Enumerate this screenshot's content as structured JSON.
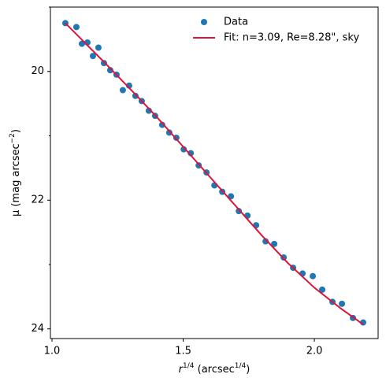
{
  "chart_data": {
    "type": "scatter_fit",
    "xlabel": [
      "r",
      "1/4",
      " (arcsec",
      "1/4",
      ")"
    ],
    "ylabel": [
      "μ",
      " (mag arcsec",
      "−2",
      ")"
    ],
    "xlim": [
      0.994,
      2.243
    ],
    "ylim": [
      24.15,
      19.0
    ],
    "xticks": [
      {
        "value": 1.0,
        "label": "1.0"
      },
      1.5,
      {
        "value": 2.0,
        "label": "2.0"
      }
    ],
    "yticks": [
      20,
      22,
      24
    ],
    "yminorticks": [
      19,
      21,
      23
    ],
    "legend": "upper right",
    "series": [
      {
        "name": "Data",
        "color": "#1f77b4",
        "kind": "points",
        "x": [
          1.051,
          1.093,
          1.114,
          1.135,
          1.156,
          1.177,
          1.198,
          1.222,
          1.246,
          1.27,
          1.294,
          1.318,
          1.342,
          1.369,
          1.393,
          1.42,
          1.447,
          1.474,
          1.502,
          1.529,
          1.559,
          1.589,
          1.619,
          1.649,
          1.682,
          1.712,
          1.745,
          1.778,
          1.814,
          1.847,
          1.883,
          1.919,
          1.955,
          1.994,
          2.03,
          2.069,
          2.105,
          2.147,
          2.186
        ],
        "values": [
          19.25,
          19.31,
          19.57,
          19.55,
          19.76,
          19.63,
          19.87,
          19.98,
          20.05,
          20.29,
          20.22,
          20.38,
          20.46,
          20.61,
          20.69,
          20.83,
          20.95,
          21.03,
          21.21,
          21.27,
          21.46,
          21.57,
          21.77,
          21.87,
          21.94,
          22.17,
          22.24,
          22.39,
          22.64,
          22.68,
          22.89,
          23.05,
          23.14,
          23.18,
          23.39,
          23.58,
          23.61,
          23.83,
          23.9
        ]
      },
      {
        "name": "Fit: n=3.09, Re=8.28\", sky",
        "color": "#dc143c",
        "kind": "line",
        "x": [
          1.051,
          1.1,
          1.2,
          1.3,
          1.4,
          1.5,
          1.6,
          1.7,
          1.8,
          1.9,
          2.0,
          2.1,
          2.186
        ],
        "values": [
          19.25,
          19.45,
          19.86,
          20.28,
          20.71,
          21.17,
          21.63,
          22.09,
          22.55,
          22.98,
          23.36,
          23.68,
          23.93
        ]
      }
    ]
  }
}
